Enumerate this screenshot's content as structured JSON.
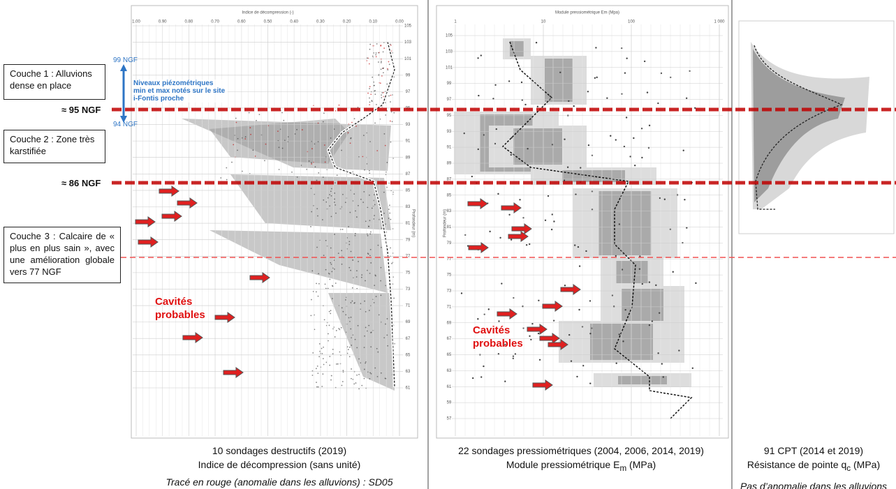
{
  "annotations": {
    "layer1": "Couche 1 : Alluvions dense en place",
    "level95": "≈ 95 NGF",
    "layer2": "Couche 2 : Zone très karstifiée",
    "level86": "≈ 86 NGF",
    "layer3": "Couche 3 : Calcaire de « plus en plus sain », avec une amélioration globale vers 77 NGF",
    "ngf99": "99 NGF",
    "ngf94": "94 NGF",
    "piezo": "Niveaux piézométriques min et max notés sur le site i-Fontis proche"
  },
  "panels": [
    {
      "axis_title": "Indice de décompression (-)",
      "top_ticks": [
        "1.00",
        "0.90",
        "0.80",
        "0.70",
        "0.60",
        "0.50",
        "0.40",
        "0.30",
        "0.20",
        "0.10",
        "0.00"
      ],
      "side_ticks": [
        "105",
        "103",
        "101",
        "99",
        "97",
        "95",
        "93",
        "91",
        "89",
        "87",
        "85",
        "83",
        "81",
        "79",
        "77",
        "75",
        "73",
        "71",
        "69",
        "67",
        "65",
        "63",
        "61"
      ],
      "side_title": "Profondeur (m)",
      "cavities": "Cavités probables",
      "caption": [
        "10 sondages destructifs (2019)",
        "Indice de décompression (sans unité)"
      ],
      "note": "Tracé en rouge (anomalie dans les alluvions) : SD05"
    },
    {
      "axis_title": "Module pressiométrique Em (Mpa)",
      "top_ticks": [
        "1",
        "10",
        "100",
        "1 000"
      ],
      "side_ticks": [
        "105",
        "103",
        "101",
        "99",
        "97",
        "95",
        "93",
        "91",
        "89",
        "87",
        "85",
        "83",
        "81",
        "79",
        "77",
        "75",
        "73",
        "71",
        "69",
        "67",
        "65",
        "63",
        "61",
        "59",
        "57"
      ],
      "side_title": "Profondeur (m)",
      "cavities": "Cavités probables",
      "caption": [
        "22 sondages pressiométriques (2004, 2006, 2014, 2019)",
        "Module pressiométrique E",
        "m",
        " (MPa)"
      ]
    },
    {
      "caption": [
        "91 CPT (2014 et 2019)",
        "Résistance de pointe q",
        "c",
        " (MPa)"
      ],
      "note": "Pas d’anomalie dans les alluvions"
    }
  ]
}
